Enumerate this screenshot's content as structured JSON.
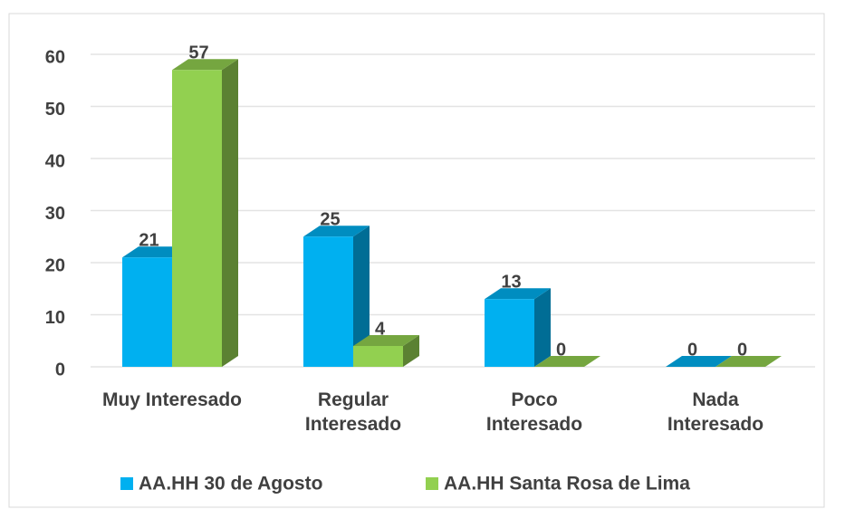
{
  "chart_data": {
    "type": "bar3d",
    "categories": [
      "Muy Interesado",
      "Regular Interesado",
      "Poco Interesado",
      "Nada Interesado"
    ],
    "series": [
      {
        "name": "AA.HH 30 de Agosto",
        "color": "#00b0f0",
        "values": [
          21,
          25,
          13,
          0
        ]
      },
      {
        "name": "AA.HH Santa Rosa de Lima",
        "color": "#92d050",
        "values": [
          57,
          4,
          0,
          0
        ]
      }
    ],
    "ylim": [
      0,
      60
    ],
    "yticks": [
      0,
      10,
      20,
      30,
      40,
      50,
      60
    ],
    "grid": true,
    "legend": "bottom"
  }
}
